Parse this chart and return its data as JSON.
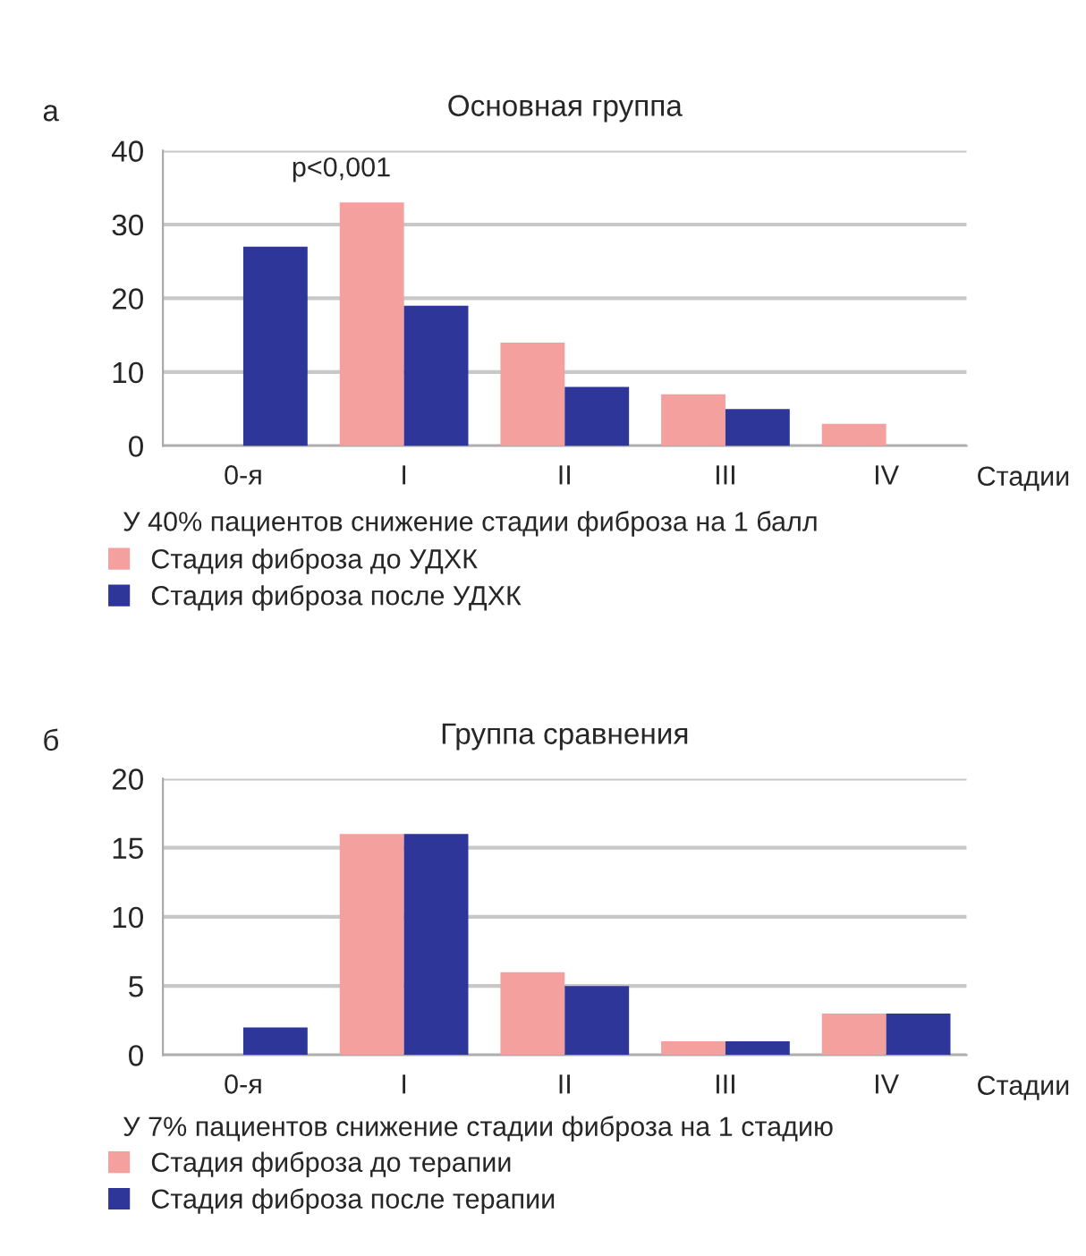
{
  "chart_data": [
    {
      "type": "bar",
      "title": "Основная группа",
      "xlabel": "Стадии",
      "categories": [
        "0-я",
        "I",
        "II",
        "III",
        "IV"
      ],
      "series": [
        {
          "name": "Стадия фиброза до УДХК",
          "color": "#f4a09e",
          "values": [
            0,
            33,
            14,
            7,
            3
          ]
        },
        {
          "name": "Стадия фиброза после УДХК",
          "color": "#2e3799",
          "values": [
            27,
            19,
            8,
            5,
            0
          ]
        }
      ],
      "ylim": [
        0,
        40
      ],
      "yticks": [
        0,
        10,
        20,
        30,
        40
      ],
      "grid": "y",
      "legend": "bottom",
      "annotations": [
        "а",
        "p<0,001",
        "У 40% пациентов снижение стадии фиброза на 1 балл"
      ]
    },
    {
      "type": "bar",
      "title": "Группа сравнения",
      "xlabel": "Стадии",
      "categories": [
        "0-я",
        "I",
        "II",
        "III",
        "IV"
      ],
      "series": [
        {
          "name": "Стадия фиброза до терапии",
          "color": "#f4a09e",
          "values": [
            0,
            16,
            6,
            1,
            3
          ]
        },
        {
          "name": "Стадия фиброза после терапии",
          "color": "#2e3799",
          "values": [
            2,
            16,
            5,
            1,
            3
          ]
        }
      ],
      "ylim": [
        0,
        20
      ],
      "yticks": [
        0,
        5,
        10,
        15,
        20
      ],
      "grid": "y",
      "legend": "bottom",
      "annotations": [
        "б",
        "У 7% пациентов снижение стадии фиброза на 1 стадию"
      ]
    }
  ]
}
